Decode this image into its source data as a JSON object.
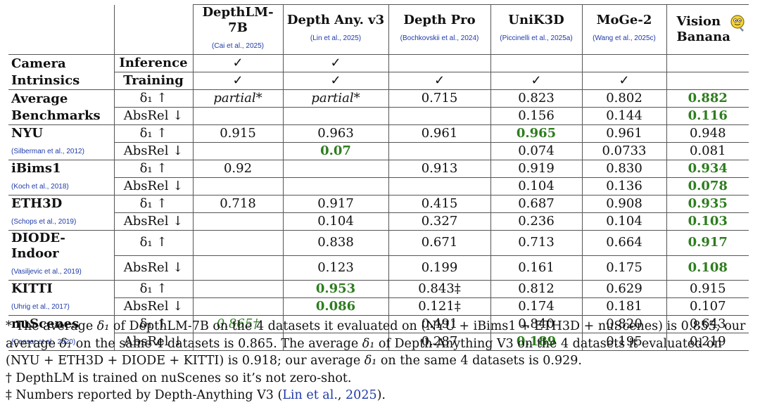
{
  "models": [
    {
      "name": "DepthLM-7B",
      "cite": "(Cai et al., 2025)"
    },
    {
      "name": "Depth Any. v3",
      "cite": "(Lin et al., 2025)"
    },
    {
      "name": "Depth Pro",
      "cite": "(Bochkovskii et al., 2024)"
    },
    {
      "name": "UniK3D",
      "cite": "(Piccinelli et al., 2025a)"
    },
    {
      "name": "MoGe-2",
      "cite": "(Wang et al., 2025c)"
    },
    {
      "name": "Vision Banana",
      "cite": ""
    }
  ],
  "intrinsics": {
    "label": "Camera Intrinsics",
    "rows": [
      {
        "label": "Inference",
        "values": [
          "✓",
          "✓",
          "",
          "",
          "",
          ""
        ]
      },
      {
        "label": "Training",
        "values": [
          "✓",
          "✓",
          "✓",
          "✓",
          "✓",
          ""
        ]
      }
    ]
  },
  "metrics": {
    "d1": "δ₁ ↑",
    "absrel": "AbsRel ↓"
  },
  "rows": [
    {
      "name": "Average Benchmarks",
      "cite": "",
      "d1": [
        "partial*",
        "partial*",
        "0.715",
        "0.823",
        "0.802",
        "0.882"
      ],
      "absrel": [
        "",
        "",
        "",
        "0.156",
        "0.144",
        "0.116"
      ],
      "d1_style": [
        "ital",
        "ital",
        "",
        "",
        "",
        "best"
      ],
      "absrel_style": [
        "",
        "",
        "",
        "",
        "",
        "best"
      ]
    },
    {
      "name": "NYU",
      "cite": "(Silberman et al., 2012)",
      "d1": [
        "0.915",
        "0.963",
        "0.961",
        "0.965",
        "0.961",
        "0.948"
      ],
      "absrel": [
        "",
        "0.07",
        "",
        "0.074",
        "0.0733",
        "0.081"
      ],
      "d1_style": [
        "",
        "",
        "",
        "best",
        "",
        ""
      ],
      "absrel_style": [
        "",
        "best",
        "",
        "",
        "",
        ""
      ]
    },
    {
      "name": "iBims1",
      "cite": "(Koch et al., 2018)",
      "d1": [
        "0.92",
        "",
        "0.913",
        "0.919",
        "0.830",
        "0.934"
      ],
      "absrel": [
        "",
        "",
        "",
        "0.104",
        "0.136",
        "0.078"
      ],
      "d1_style": [
        "",
        "",
        "",
        "",
        "",
        "best"
      ],
      "absrel_style": [
        "",
        "",
        "",
        "",
        "",
        "best"
      ]
    },
    {
      "name": "ETH3D",
      "cite": "(Schops et al., 2019)",
      "d1": [
        "0.718",
        "0.917",
        "0.415",
        "0.687",
        "0.908",
        "0.935"
      ],
      "absrel": [
        "",
        "0.104",
        "0.327",
        "0.236",
        "0.104",
        "0.103"
      ],
      "d1_style": [
        "",
        "",
        "",
        "",
        "",
        "best"
      ],
      "absrel_style": [
        "",
        "",
        "",
        "",
        "",
        "best"
      ]
    },
    {
      "name": "DIODE-Indoor",
      "cite": "(Vasiljevic et al., 2019)",
      "d1": [
        "",
        "0.838",
        "0.671",
        "0.713",
        "0.664",
        "0.917"
      ],
      "absrel": [
        "",
        "0.123",
        "0.199",
        "0.161",
        "0.175",
        "0.108"
      ],
      "d1_style": [
        "",
        "",
        "",
        "",
        "",
        "best"
      ],
      "absrel_style": [
        "",
        "",
        "",
        "",
        "",
        "best"
      ]
    },
    {
      "name": "KITTI",
      "cite": "(Uhrig et al., 2017)",
      "d1": [
        "",
        "0.953",
        "0.843‡",
        "0.812",
        "0.629",
        "0.915"
      ],
      "absrel": [
        "",
        "0.086",
        "0.121‡",
        "0.174",
        "0.181",
        "0.107"
      ],
      "d1_style": [
        "",
        "best",
        "",
        "",
        "",
        ""
      ],
      "absrel_style": [
        "",
        "best",
        "",
        "",
        "",
        ""
      ]
    },
    {
      "name": "nuScenes",
      "cite": "(Caesar et al., 2020)",
      "d1": [
        "0.865†",
        "",
        "0.491",
        "0.840",
        "0.820",
        "0.643"
      ],
      "absrel": [
        "",
        "",
        "0.287",
        "0.189",
        "0.195",
        "0.219"
      ],
      "d1_style": [
        "green-ital",
        "",
        "",
        "",
        "",
        ""
      ],
      "absrel_style": [
        "",
        "",
        "",
        "best",
        "",
        ""
      ]
    }
  ],
  "notes": {
    "star_p1": "* The average ",
    "star_p2": " of DepthLM-7B on the 4 datasets it evaluated on (NYU + iBims1 + ETH3D + nuScenes) is 0.855; our average ",
    "star_p3": " on the same 4 datasets is 0.865. The average ",
    "star_p4": " of Depth-Anything V3 on the 4 datasets it evaluated on (NYU + ETH3D + DIODE + KITTI) is 0.918; our average ",
    "star_p5": " on the same 4 datasets is 0.929.",
    "delta": "δ₁",
    "dagger": "† DepthLM is trained on nuScenes so it’s not zero-shot.",
    "ddagger_p1": "‡ Numbers reported by Depth-Anything V3 (",
    "ddagger_link": "Lin et al.",
    "ddagger_p2": ", ",
    "ddagger_year": "2025",
    "ddagger_p3": ")."
  }
}
